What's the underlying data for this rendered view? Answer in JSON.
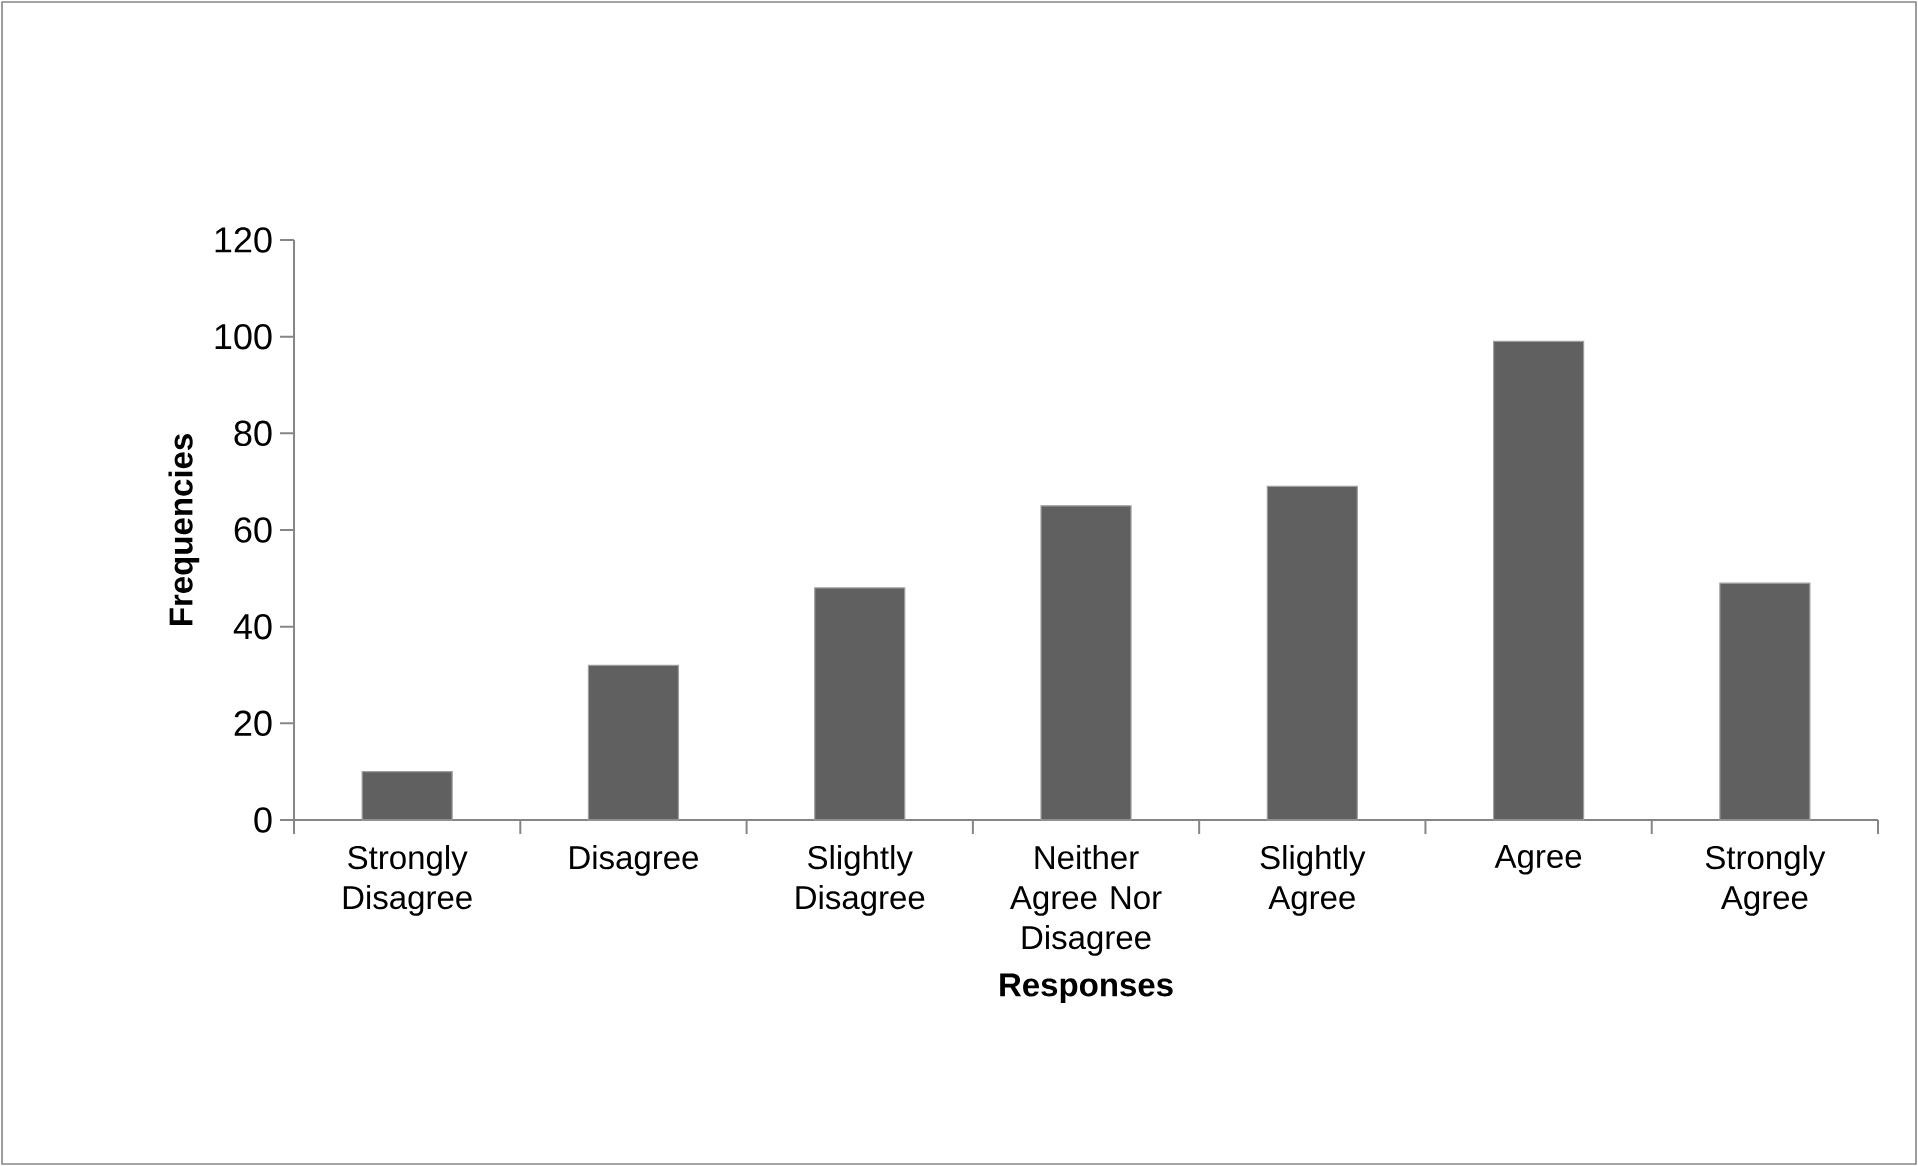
{
  "chart_data": {
    "type": "bar",
    "xlabel": "Responses",
    "ylabel": "Frequencies",
    "categories": [
      "Strongly Disagree",
      "Disagree",
      "Slightly Disagree",
      "Neither Agree Nor Disagree",
      "Slightly Agree",
      "Agree",
      "Strongly Agree"
    ],
    "values": [
      10,
      32,
      48,
      65,
      69,
      99,
      49
    ],
    "color": "#606060",
    "ylim": [
      0,
      120
    ],
    "yticks": [
      0,
      20,
      40,
      60,
      80,
      100,
      120
    ]
  }
}
